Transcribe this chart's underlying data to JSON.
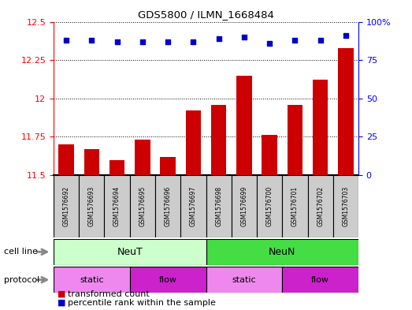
{
  "title": "GDS5800 / ILMN_1668484",
  "samples": [
    "GSM1576692",
    "GSM1576693",
    "GSM1576694",
    "GSM1576695",
    "GSM1576696",
    "GSM1576697",
    "GSM1576698",
    "GSM1576699",
    "GSM1576700",
    "GSM1576701",
    "GSM1576702",
    "GSM1576703"
  ],
  "bar_values": [
    11.7,
    11.67,
    11.6,
    11.73,
    11.62,
    11.92,
    11.96,
    12.15,
    11.76,
    11.96,
    12.12,
    12.33
  ],
  "dot_values": [
    88,
    88,
    87,
    87,
    87,
    87,
    89,
    90,
    86,
    88,
    88,
    91
  ],
  "ylim_left": [
    11.5,
    12.5
  ],
  "ylim_right": [
    0,
    100
  ],
  "yticks_left": [
    11.5,
    11.75,
    12.0,
    12.25,
    12.5
  ],
  "yticks_right": [
    0,
    25,
    50,
    75,
    100
  ],
  "ytick_labels_left": [
    "11.5",
    "11.75",
    "12",
    "12.25",
    "12.5"
  ],
  "ytick_labels_right": [
    "0",
    "25",
    "50",
    "75",
    "100%"
  ],
  "bar_color": "#cc0000",
  "dot_color": "#0000cc",
  "neut_color": "#ccffcc",
  "neun_color": "#44dd44",
  "proto_light_color": "#ee88ee",
  "proto_dark_color": "#cc22cc",
  "sample_box_color": "#cccccc",
  "legend_bar_label": "transformed count",
  "legend_dot_label": "percentile rank within the sample",
  "cell_line_label": "cell line",
  "protocol_label": "protocol",
  "neut_label": "NeuT",
  "neun_label": "NeuN",
  "static_label": "static",
  "flow_label": "flow"
}
